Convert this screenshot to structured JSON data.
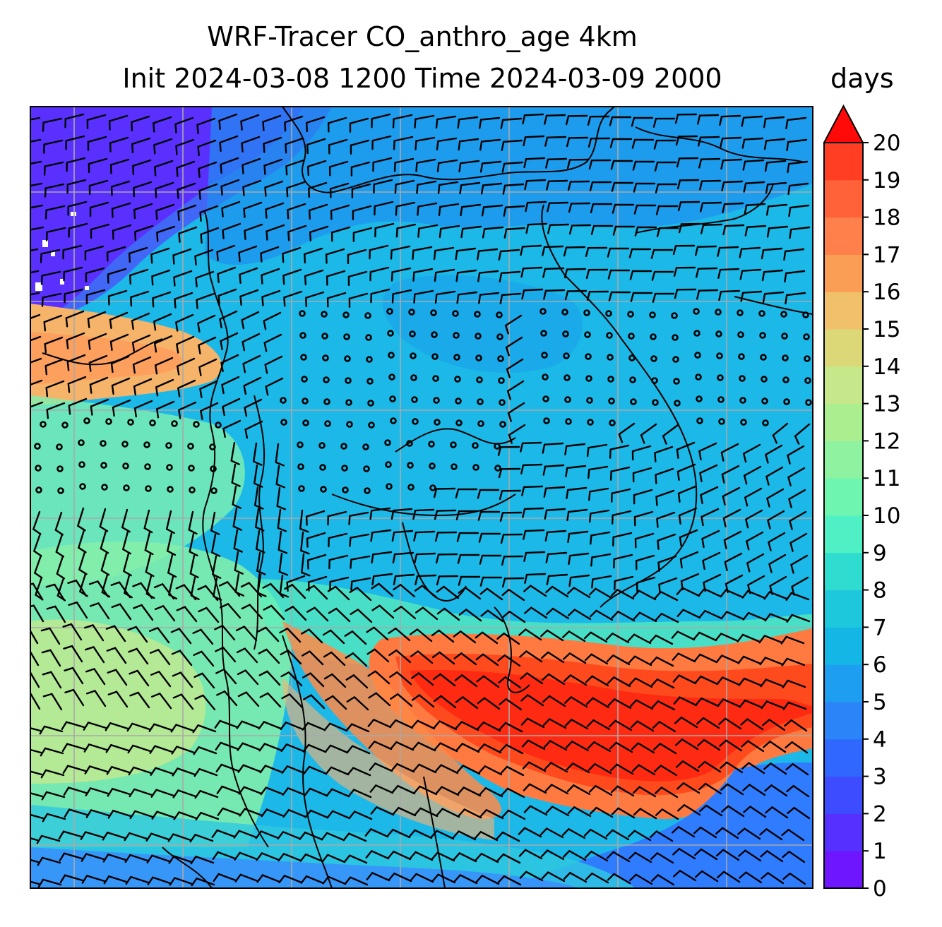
{
  "title_line1": "WRF-Tracer CO_anthro_age 4km",
  "title_line2": "Init 2024-03-08 1200 Time 2024-03-09 2000",
  "colorbar": {
    "unit": "days",
    "min": 0,
    "max": 20,
    "step": 1,
    "extend": "max",
    "ticks": [
      "0",
      "1",
      "2",
      "3",
      "4",
      "5",
      "6",
      "7",
      "8",
      "9",
      "10",
      "11",
      "12",
      "13",
      "14",
      "15",
      "16",
      "17",
      "18",
      "19",
      "20"
    ]
  },
  "map": {
    "gridlines": true,
    "gridline_color": "#a9a9a9",
    "coastline_color": "#000000",
    "field_description_colors": [
      "#6a1aff",
      "#2c7bff",
      "#18bde6",
      "#5cf0b8",
      "#c4e88a",
      "#f2c06a",
      "#ff7a3c",
      "#ff1a10"
    ]
  }
}
